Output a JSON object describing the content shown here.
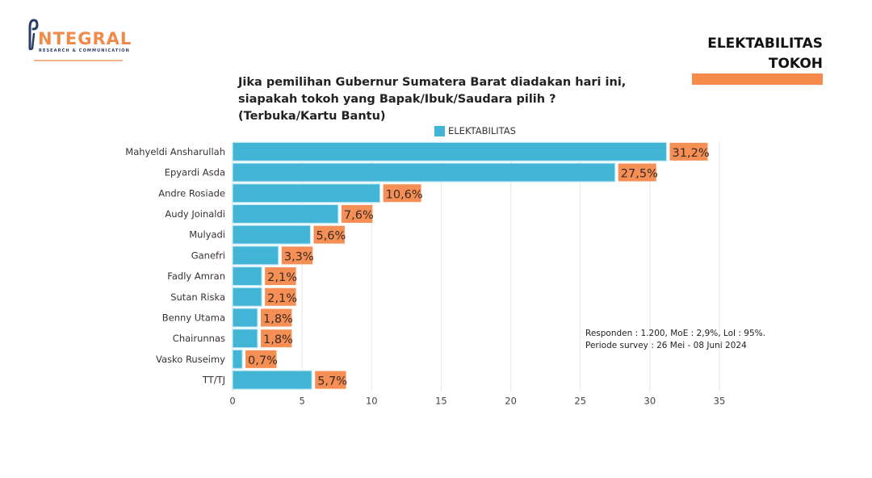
{
  "brand": {
    "name": "NTEGRAL",
    "initial": "I",
    "tagline": "RESEARCH & COMMUNICATION",
    "accent_color": "#f08a4b",
    "mark_color": "#2a3e66"
  },
  "section": {
    "title_line1": "ELEKTABILITAS",
    "title_line2": "TOKOH",
    "bar_color": "#f58a4b"
  },
  "question": "Jika pemilihan Gubernur Sumatera Barat diadakan hari ini, siapakah tokoh yang Bapak/Ibuk/Saudara pilih ? (Terbuka/Kartu Bantu)",
  "footnote": {
    "line1": "Responden : 1.200, MoE : 2,9%, LoI : 95%.",
    "line2": "Periode survey : 26 Mei - 08 Juni 2024"
  },
  "chart_data": {
    "type": "bar",
    "orientation": "horizontal",
    "title": "Jika pemilihan Gubernur Sumatera Barat diadakan hari ini, siapakah tokoh yang Bapak/Ibuk/Saudara pilih ? (Terbuka/Kartu Bantu)",
    "xlabel": "",
    "ylabel": "",
    "categories": [
      "Mahyeldi Ansharullah",
      "Epyardi Asda",
      "Andre Rosiade",
      "Audy Joinaldi",
      "Mulyadi",
      "Ganefri",
      "Fadly Amran",
      "Sutan Riska",
      "Benny Utama",
      "Chairunnas",
      "Vasko Ruseimy",
      "TT/TJ"
    ],
    "series": [
      {
        "name": "ELEKTABILITAS",
        "color": "#42b4d6",
        "values": [
          31.2,
          27.5,
          10.6,
          7.6,
          5.6,
          3.3,
          2.1,
          2.1,
          1.8,
          1.8,
          0.7,
          5.7
        ],
        "labels": [
          "31,2%",
          "27,5%",
          "10,6%",
          "7,6%",
          "5,6%",
          "3,3%",
          "2,1%",
          "2,1%",
          "1,8%",
          "1,8%",
          "0,7%",
          "5,7%"
        ]
      }
    ],
    "data_label_bg": "#f58f55",
    "xlim": [
      0,
      35
    ],
    "xticks": [
      0,
      5,
      10,
      15,
      20,
      25,
      30,
      35
    ],
    "xtick_labels": [
      "0",
      "5",
      "10",
      "15",
      "20",
      "25",
      "30",
      "35"
    ],
    "grid": true,
    "legend": {
      "position": "top-center",
      "entries": [
        "ELEKTABILITAS"
      ]
    }
  }
}
